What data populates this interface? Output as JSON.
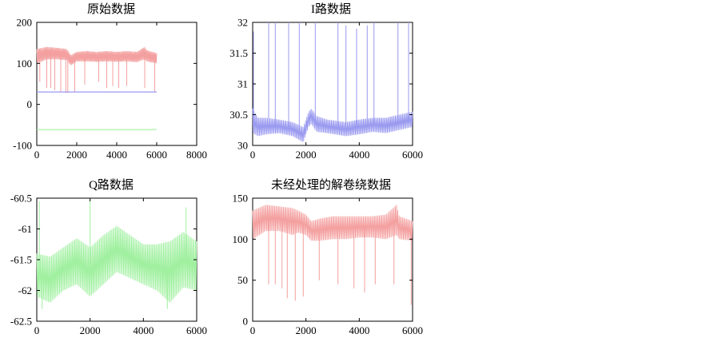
{
  "colors": {
    "red": "#f4a0a0",
    "blue": "#9a9af0",
    "green": "#a0f0a0",
    "axis": "#000000"
  },
  "chart_data": [
    {
      "type": "line",
      "title": "原始数据",
      "xlabel": "",
      "ylabel": "",
      "xlim": [
        0,
        8000
      ],
      "ylim": [
        -100,
        200
      ],
      "x_ticks": [
        0,
        2000,
        4000,
        6000,
        8000
      ],
      "y_ticks": [
        -100,
        0,
        100,
        200
      ],
      "x_tick_labels": [
        "0",
        "2000",
        "4000",
        "6000",
        "8000"
      ],
      "y_tick_labels": [
        "-100",
        "0",
        "100",
        "200"
      ],
      "grid": false,
      "series": [
        {
          "color": "#f4a0a0",
          "x": [
            0,
            500,
            1000,
            1500,
            1700,
            2000,
            2500,
            3000,
            3500,
            4000,
            4500,
            5000,
            5400,
            5500,
            6000
          ],
          "y": [
            115,
            125,
            125,
            120,
            105,
            115,
            118,
            116,
            118,
            116,
            117,
            115,
            122,
            118,
            113
          ],
          "x_range": [
            0,
            6000
          ],
          "band_low": [
            100,
            110,
            110,
            108,
            95,
            105,
            105,
            104,
            105,
            104,
            105,
            103,
            110,
            105,
            100
          ],
          "band_high": [
            135,
            140,
            138,
            135,
            120,
            128,
            130,
            128,
            130,
            128,
            130,
            128,
            140,
            132,
            125
          ],
          "spikes": [
            {
              "x": 150,
              "y": 55
            },
            {
              "x": 500,
              "y": 40
            },
            {
              "x": 700,
              "y": 40
            },
            {
              "x": 900,
              "y": 35
            },
            {
              "x": 1200,
              "y": 30
            },
            {
              "x": 1450,
              "y": 28
            },
            {
              "x": 1550,
              "y": 28
            },
            {
              "x": 1900,
              "y": 30
            },
            {
              "x": 2400,
              "y": 48
            },
            {
              "x": 3100,
              "y": 55
            },
            {
              "x": 3500,
              "y": 40
            },
            {
              "x": 3800,
              "y": 45
            },
            {
              "x": 4100,
              "y": 40
            },
            {
              "x": 4500,
              "y": 45
            },
            {
              "x": 5400,
              "y": 40
            },
            {
              "x": 5900,
              "y": 30
            }
          ]
        },
        {
          "color": "#9a9af0",
          "x": [
            0,
            1000,
            2000,
            3000,
            4000,
            5000,
            6000
          ],
          "y": [
            30.3,
            30.3,
            30.3,
            30.3,
            30.3,
            30.3,
            30.3
          ]
        },
        {
          "color": "#a0f0a0",
          "x": [
            0,
            1000,
            2000,
            3000,
            4000,
            5000,
            6000
          ],
          "y": [
            -61.5,
            -61.5,
            -61.5,
            -61.5,
            -61.5,
            -61.5,
            -61.5
          ]
        }
      ]
    },
    {
      "type": "line",
      "title": "I路数据",
      "xlabel": "",
      "ylabel": "",
      "xlim": [
        0,
        6000
      ],
      "ylim": [
        30,
        32
      ],
      "x_ticks": [
        0,
        2000,
        4000,
        6000
      ],
      "y_ticks": [
        30,
        30.5,
        31,
        31.5,
        32
      ],
      "x_tick_labels": [
        "0",
        "2000",
        "4000",
        "6000"
      ],
      "y_tick_labels": [
        "30",
        "30.5",
        "31",
        "31.5",
        "32"
      ],
      "grid": false,
      "series": [
        {
          "color": "#9a9af0",
          "x": [
            0,
            200,
            500,
            1000,
            1500,
            1900,
            2100,
            2200,
            2400,
            2800,
            3500,
            4000,
            4500,
            5000,
            5500,
            6000
          ],
          "y": [
            30.35,
            30.28,
            30.3,
            30.3,
            30.25,
            30.15,
            30.4,
            30.5,
            30.35,
            30.3,
            30.25,
            30.3,
            30.35,
            30.3,
            30.35,
            30.4
          ],
          "band_low": [
            30.2,
            30.15,
            30.18,
            30.2,
            30.15,
            30.05,
            30.3,
            30.35,
            30.22,
            30.2,
            30.15,
            30.18,
            30.22,
            30.2,
            30.25,
            30.3
          ],
          "band_high": [
            30.6,
            30.45,
            30.45,
            30.42,
            30.38,
            30.3,
            30.55,
            30.6,
            30.48,
            30.42,
            30.38,
            30.42,
            30.45,
            30.45,
            30.5,
            30.55
          ],
          "spikes": [
            {
              "x": 30,
              "y": 31.85
            },
            {
              "x": 600,
              "y": 32
            },
            {
              "x": 850,
              "y": 32
            },
            {
              "x": 1350,
              "y": 32
            },
            {
              "x": 1750,
              "y": 32
            },
            {
              "x": 2350,
              "y": 32
            },
            {
              "x": 3200,
              "y": 32
            },
            {
              "x": 3500,
              "y": 31.95
            },
            {
              "x": 3900,
              "y": 31.9
            },
            {
              "x": 4300,
              "y": 31.95
            },
            {
              "x": 4550,
              "y": 32
            },
            {
              "x": 5450,
              "y": 32
            },
            {
              "x": 5850,
              "y": 32
            }
          ]
        }
      ]
    },
    {
      "type": "line",
      "title": "Q路数据",
      "xlabel": "",
      "ylabel": "",
      "xlim": [
        0,
        6000
      ],
      "ylim": [
        -62.5,
        -60.5
      ],
      "x_ticks": [
        0,
        2000,
        4000,
        6000
      ],
      "y_ticks": [
        -62.5,
        -62,
        -61.5,
        -61,
        -60.5
      ],
      "x_tick_labels": [
        "0",
        "2000",
        "4000",
        "6000"
      ],
      "y_tick_labels": [
        "-62.5",
        "-62",
        "-61.5",
        "-61",
        "-60.5"
      ],
      "grid": false,
      "series": [
        {
          "color": "#a0f0a0",
          "x": [
            0,
            500,
            1000,
            1500,
            2000,
            2500,
            3000,
            3500,
            4000,
            4500,
            5000,
            5500,
            6000
          ],
          "y": [
            -61.7,
            -61.8,
            -61.6,
            -61.5,
            -61.7,
            -61.5,
            -61.3,
            -61.45,
            -61.6,
            -61.6,
            -61.7,
            -61.5,
            -61.6
          ],
          "band_low": [
            -62.1,
            -62.2,
            -62.0,
            -61.9,
            -62.1,
            -61.9,
            -61.7,
            -61.8,
            -61.9,
            -62.0,
            -62.2,
            -61.95,
            -62.0
          ],
          "band_high": [
            -61.4,
            -61.45,
            -61.3,
            -61.15,
            -61.3,
            -61.1,
            -60.95,
            -61.1,
            -61.25,
            -61.25,
            -61.2,
            -61.05,
            -61.2
          ],
          "spikes": [
            {
              "x": 100,
              "y": -60.55
            },
            {
              "x": 2000,
              "y": -60.55
            },
            {
              "x": 5600,
              "y": -60.65
            },
            {
              "x": 4900,
              "y": -62.3
            },
            {
              "x": 200,
              "y": -62.3
            }
          ]
        }
      ]
    },
    {
      "type": "line",
      "title": "未经处理的解卷绕数据",
      "xlabel": "",
      "ylabel": "",
      "xlim": [
        0,
        6000
      ],
      "ylim": [
        0,
        150
      ],
      "x_ticks": [
        0,
        2000,
        4000,
        6000
      ],
      "y_ticks": [
        0,
        50,
        100,
        150
      ],
      "x_tick_labels": [
        "0",
        "2000",
        "4000",
        "6000"
      ],
      "y_tick_labels": [
        "0",
        "50",
        "100",
        "150"
      ],
      "grid": false,
      "series": [
        {
          "color": "#f4a0a0",
          "x": [
            0,
            500,
            1000,
            1500,
            1700,
            2000,
            2200,
            2500,
            3000,
            3500,
            4000,
            4500,
            5000,
            5400,
            5500,
            6000
          ],
          "y": [
            115,
            125,
            125,
            120,
            122,
            118,
            112,
            110,
            113,
            112,
            114,
            115,
            115,
            122,
            115,
            110
          ],
          "band_low": [
            100,
            110,
            110,
            105,
            108,
            105,
            98,
            98,
            100,
            100,
            102,
            102,
            100,
            105,
            100,
            98
          ],
          "band_high": [
            135,
            142,
            140,
            138,
            135,
            130,
            122,
            125,
            128,
            128,
            128,
            128,
            130,
            142,
            128,
            122
          ],
          "spikes": [
            {
              "x": 600,
              "y": 45
            },
            {
              "x": 850,
              "y": 45
            },
            {
              "x": 1100,
              "y": 40
            },
            {
              "x": 1300,
              "y": 28
            },
            {
              "x": 1600,
              "y": 25
            },
            {
              "x": 1900,
              "y": 30
            },
            {
              "x": 2500,
              "y": 50
            },
            {
              "x": 3200,
              "y": 45
            },
            {
              "x": 3800,
              "y": 40
            },
            {
              "x": 4200,
              "y": 35
            },
            {
              "x": 4600,
              "y": 45
            },
            {
              "x": 5300,
              "y": 45
            },
            {
              "x": 5950,
              "y": 20
            }
          ]
        }
      ]
    }
  ]
}
